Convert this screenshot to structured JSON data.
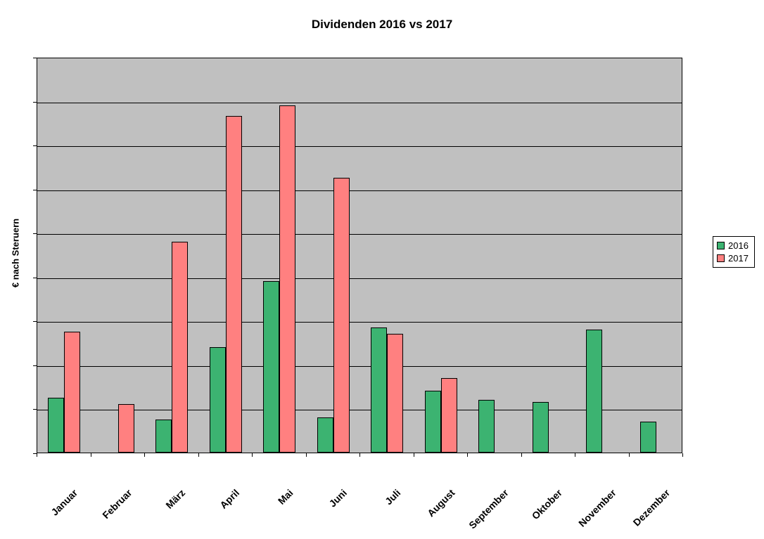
{
  "chart_data": {
    "type": "bar",
    "title": "Dividenden 2016 vs 2017",
    "xlabel": "",
    "ylabel": "€ nach Steruern",
    "categories": [
      "Januar",
      "Februar",
      "März",
      "April",
      "Mai",
      "Juni",
      "Juli",
      "August",
      "September",
      "Oktober",
      "November",
      "Dezember"
    ],
    "series": [
      {
        "name": "2016",
        "color": "#3CB371",
        "values": [
          1.25,
          0,
          0.75,
          2.4,
          3.9,
          0.8,
          2.85,
          1.4,
          1.2,
          1.15,
          2.8,
          0.7
        ]
      },
      {
        "name": "2017",
        "color": "#FF8080",
        "values": [
          2.75,
          1.1,
          4.8,
          7.65,
          7.9,
          6.25,
          2.7,
          1.7,
          0,
          0,
          0,
          0
        ]
      }
    ],
    "ylim": [
      0,
      9
    ],
    "gridline_interval": 1,
    "grid": true,
    "y_tick_labels_visible": false,
    "legend_position": "right",
    "plot_bg": "#C0C0C0",
    "gridline_color": "#000000"
  }
}
